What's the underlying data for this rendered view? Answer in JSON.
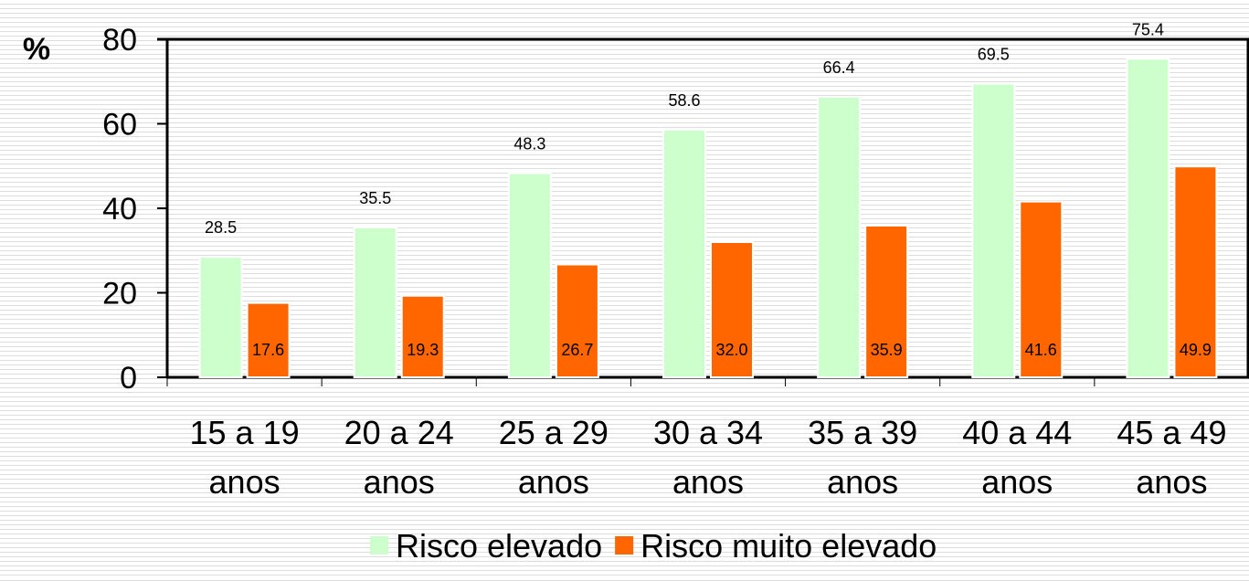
{
  "chart_data": {
    "type": "bar",
    "ylabel": "%",
    "ylim": [
      0,
      80
    ],
    "yticks": [
      "0",
      "20",
      "40",
      "60",
      "80"
    ],
    "categories": [
      [
        "15 a 19",
        "anos"
      ],
      [
        "20 a 24",
        "anos"
      ],
      [
        "25 a 29",
        "anos"
      ],
      [
        "30 a 34",
        "anos"
      ],
      [
        "35 a 39",
        "anos"
      ],
      [
        "40 a 44",
        "anos"
      ],
      [
        "45 a 49",
        "anos"
      ]
    ],
    "series": [
      {
        "name": "Risco elevado",
        "color": "#ccffcc",
        "values": [
          28.5,
          35.5,
          48.3,
          58.6,
          66.4,
          69.5,
          75.4
        ],
        "labels": [
          "28.5",
          "35.5",
          "48.3",
          "58.6",
          "66.4",
          "69.5",
          "75.4"
        ]
      },
      {
        "name": "Risco muito elevado",
        "color": "#ff6600",
        "values": [
          17.6,
          19.3,
          26.7,
          32.0,
          35.9,
          41.6,
          49.9
        ],
        "labels": [
          "17.6",
          "19.3",
          "26.7",
          "32.0",
          "35.9",
          "41.6",
          "49.9"
        ]
      }
    ],
    "legend_position": "bottom",
    "grid": false
  }
}
